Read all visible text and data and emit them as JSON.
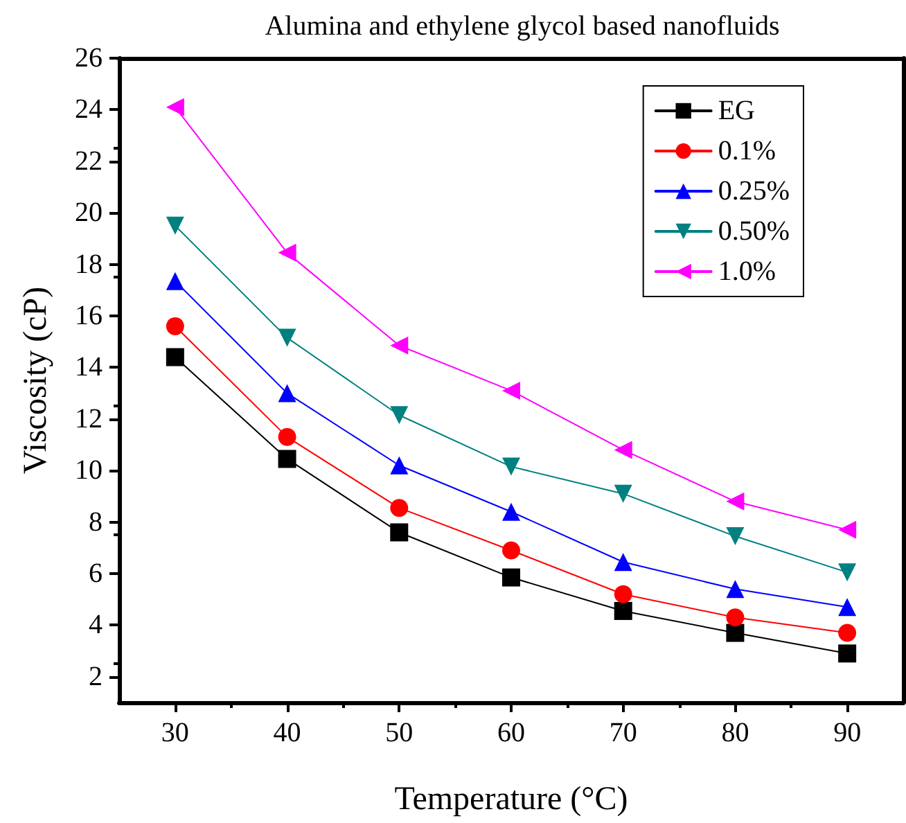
{
  "chart_data": {
    "type": "line",
    "title": "Alumina and ethylene glycol based nanofluids",
    "xlabel": "Temperature (°C)",
    "ylabel": "Viscosity (cP)",
    "x": [
      30,
      40,
      50,
      60,
      70,
      80,
      90
    ],
    "series": [
      {
        "name": "EG",
        "color": "#000000",
        "marker": "square",
        "values": [
          14.4,
          10.45,
          7.6,
          5.85,
          4.55,
          3.7,
          2.9
        ]
      },
      {
        "name": "0.1%",
        "color": "#ff0000",
        "marker": "circle",
        "values": [
          15.6,
          11.3,
          8.55,
          6.9,
          5.2,
          4.3,
          3.7
        ]
      },
      {
        "name": "0.25%",
        "color": "#0000ff",
        "marker": "triangle",
        "values": [
          17.35,
          13.0,
          10.2,
          8.4,
          6.45,
          5.4,
          4.7
        ]
      },
      {
        "name": "0.50%",
        "color": "#008080",
        "marker": "triangle-down",
        "values": [
          19.5,
          15.15,
          12.15,
          10.15,
          9.1,
          7.45,
          6.05
        ]
      },
      {
        "name": "1.0%",
        "color": "#ff00ff",
        "marker": "triangle-left",
        "values": [
          24.1,
          18.45,
          14.85,
          13.1,
          10.8,
          8.8,
          7.7
        ]
      }
    ],
    "xlim": [
      25,
      95
    ],
    "xticks": [
      30,
      40,
      50,
      60,
      70,
      80,
      90
    ],
    "ylim": [
      1,
      26
    ],
    "yticks": [
      2,
      4,
      6,
      8,
      10,
      12,
      14,
      16,
      18,
      20,
      22,
      24,
      26
    ],
    "grid": false,
    "legend": "top right",
    "line_style": "solid"
  }
}
